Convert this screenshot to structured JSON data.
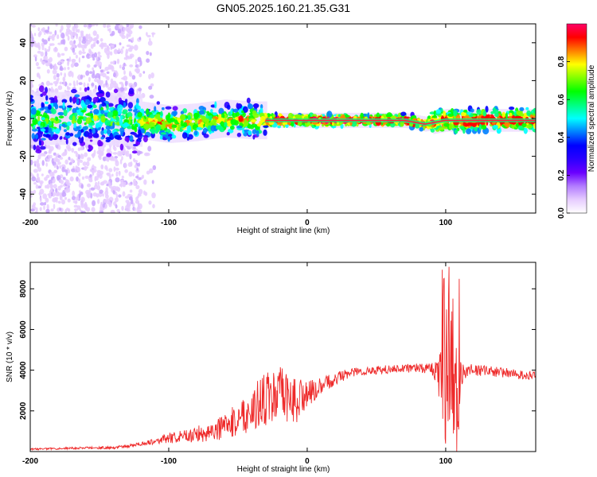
{
  "figure": {
    "title": "GN05.2025.160.21.35.G31"
  },
  "chart_data": [
    {
      "type": "heatmap",
      "title": "GN05.2025.160.21.35.G31",
      "xlabel": "Height of straight line (km)",
      "ylabel": "Frequency (Hz)",
      "xlim": [
        -200,
        165
      ],
      "ylim": [
        -50,
        50
      ],
      "xticks": [
        -200,
        -100,
        0,
        100
      ],
      "yticks": [
        -40,
        -20,
        0,
        20,
        40
      ],
      "grid": false,
      "colorbar": {
        "label": "Normalized spectral amplitude",
        "range": [
          0,
          1
        ],
        "ticks": [
          0.0,
          0.2,
          0.4,
          0.6,
          0.8
        ],
        "colormap": [
          "#ffffff",
          "#e6ccff",
          "#b27cff",
          "#6a00ff",
          "#2a00ff",
          "#0000ff",
          "#0080ff",
          "#00ffff",
          "#00ff80",
          "#00ff00",
          "#80ff00",
          "#ffff00",
          "#ff8000",
          "#ff0000",
          "#ff0066"
        ]
      },
      "center_line": [
        {
          "x": -200,
          "y": 0
        },
        {
          "x": -150,
          "y": 0
        },
        {
          "x": -120,
          "y": -1
        },
        {
          "x": -100,
          "y": -3
        },
        {
          "x": -80,
          "y": -2
        },
        {
          "x": -60,
          "y": 0
        },
        {
          "x": -40,
          "y": -1
        },
        {
          "x": -30,
          "y": -1
        },
        {
          "x": -10,
          "y": -1
        },
        {
          "x": 0,
          "y": -1
        },
        {
          "x": 20,
          "y": -1
        },
        {
          "x": 50,
          "y": -1
        },
        {
          "x": 70,
          "y": -1
        },
        {
          "x": 85,
          "y": -3
        },
        {
          "x": 100,
          "y": -1
        },
        {
          "x": 120,
          "y": -1
        },
        {
          "x": 165,
          "y": -1
        }
      ]
    },
    {
      "type": "line",
      "xlabel": "Height of straight line (km)",
      "ylabel": "SNR (10 * v/v)",
      "xlim": [
        -200,
        165
      ],
      "ylim": [
        0,
        9300
      ],
      "xticks": [
        -200,
        -100,
        0,
        100
      ],
      "yticks": [
        2000,
        4000,
        6000,
        8000
      ],
      "grid": false,
      "color": "#ee2a2a",
      "series": [
        {
          "points": [
            {
              "x": -200,
              "y": 120
            },
            {
              "x": -180,
              "y": 150
            },
            {
              "x": -160,
              "y": 180
            },
            {
              "x": -140,
              "y": 200
            },
            {
              "x": -130,
              "y": 260
            },
            {
              "x": -120,
              "y": 380
            },
            {
              "x": -110,
              "y": 520
            },
            {
              "x": -100,
              "y": 650
            },
            {
              "x": -90,
              "y": 720
            },
            {
              "x": -80,
              "y": 850
            },
            {
              "x": -70,
              "y": 1000
            },
            {
              "x": -60,
              "y": 1200
            },
            {
              "x": -50,
              "y": 1600
            },
            {
              "x": -40,
              "y": 2100
            },
            {
              "x": -30,
              "y": 2600
            },
            {
              "x": -20,
              "y": 2700
            },
            {
              "x": -10,
              "y": 2500
            },
            {
              "x": 0,
              "y": 2800
            },
            {
              "x": 10,
              "y": 3200
            },
            {
              "x": 20,
              "y": 3600
            },
            {
              "x": 30,
              "y": 3850
            },
            {
              "x": 40,
              "y": 3950
            },
            {
              "x": 50,
              "y": 4000
            },
            {
              "x": 60,
              "y": 4050
            },
            {
              "x": 70,
              "y": 4100
            },
            {
              "x": 80,
              "y": 4100
            },
            {
              "x": 90,
              "y": 4100
            },
            {
              "x": 96,
              "y": 3500
            },
            {
              "x": 99,
              "y": 2500
            },
            {
              "x": 102,
              "y": 4500
            },
            {
              "x": 105,
              "y": 3000
            },
            {
              "x": 108,
              "y": 2000
            },
            {
              "x": 112,
              "y": 4000
            },
            {
              "x": 120,
              "y": 4000
            },
            {
              "x": 130,
              "y": 3950
            },
            {
              "x": 140,
              "y": 3900
            },
            {
              "x": 150,
              "y": 3800
            },
            {
              "x": 165,
              "y": 3700
            }
          ],
          "noise": [
            {
              "x": -200,
              "y": 40
            },
            {
              "x": -120,
              "y": 80
            },
            {
              "x": -100,
              "y": 250
            },
            {
              "x": -80,
              "y": 400
            },
            {
              "x": -60,
              "y": 600
            },
            {
              "x": -40,
              "y": 1100
            },
            {
              "x": -20,
              "y": 1500
            },
            {
              "x": -10,
              "y": 1300
            },
            {
              "x": 0,
              "y": 700
            },
            {
              "x": 10,
              "y": 400
            },
            {
              "x": 30,
              "y": 250
            },
            {
              "x": 60,
              "y": 200
            },
            {
              "x": 90,
              "y": 250
            },
            {
              "x": 95,
              "y": 900
            },
            {
              "x": 98,
              "y": 3000
            },
            {
              "x": 103,
              "y": 4500
            },
            {
              "x": 107,
              "y": 3500
            },
            {
              "x": 110,
              "y": 1200
            },
            {
              "x": 115,
              "y": 300
            },
            {
              "x": 165,
              "y": 200
            }
          ]
        }
      ]
    }
  ]
}
